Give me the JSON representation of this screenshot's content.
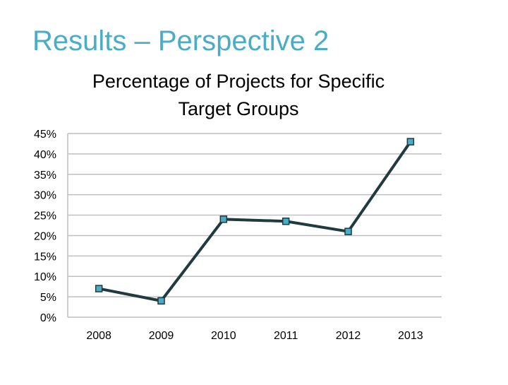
{
  "slide": {
    "title": "Results – Perspective 2"
  },
  "colors": {
    "title": "#4bacc6",
    "line": "#1f3a40",
    "marker_fill": "#4bacc6",
    "marker_stroke": "#1f3a40",
    "grid": "#bfbfbf",
    "text": "#000000"
  },
  "chart_data": {
    "type": "line",
    "title_lines": [
      "Percentage of Projects for Specific",
      "Target Groups"
    ],
    "categories": [
      "2008",
      "2009",
      "2010",
      "2011",
      "2012",
      "2013"
    ],
    "series": [
      {
        "name": "Percentage of Projects for Specific Target Groups",
        "values": [
          7,
          4,
          24,
          23.5,
          21,
          43
        ]
      }
    ],
    "ylim": [
      0,
      45
    ],
    "yticks": [
      0,
      5,
      10,
      15,
      20,
      25,
      30,
      35,
      40,
      45
    ],
    "ytick_labels": [
      "0%",
      "5%",
      "10%",
      "15%",
      "20%",
      "25%",
      "30%",
      "35%",
      "40%",
      "45%"
    ],
    "xlabel": "",
    "ylabel": "",
    "grid": true,
    "legend": "none"
  }
}
